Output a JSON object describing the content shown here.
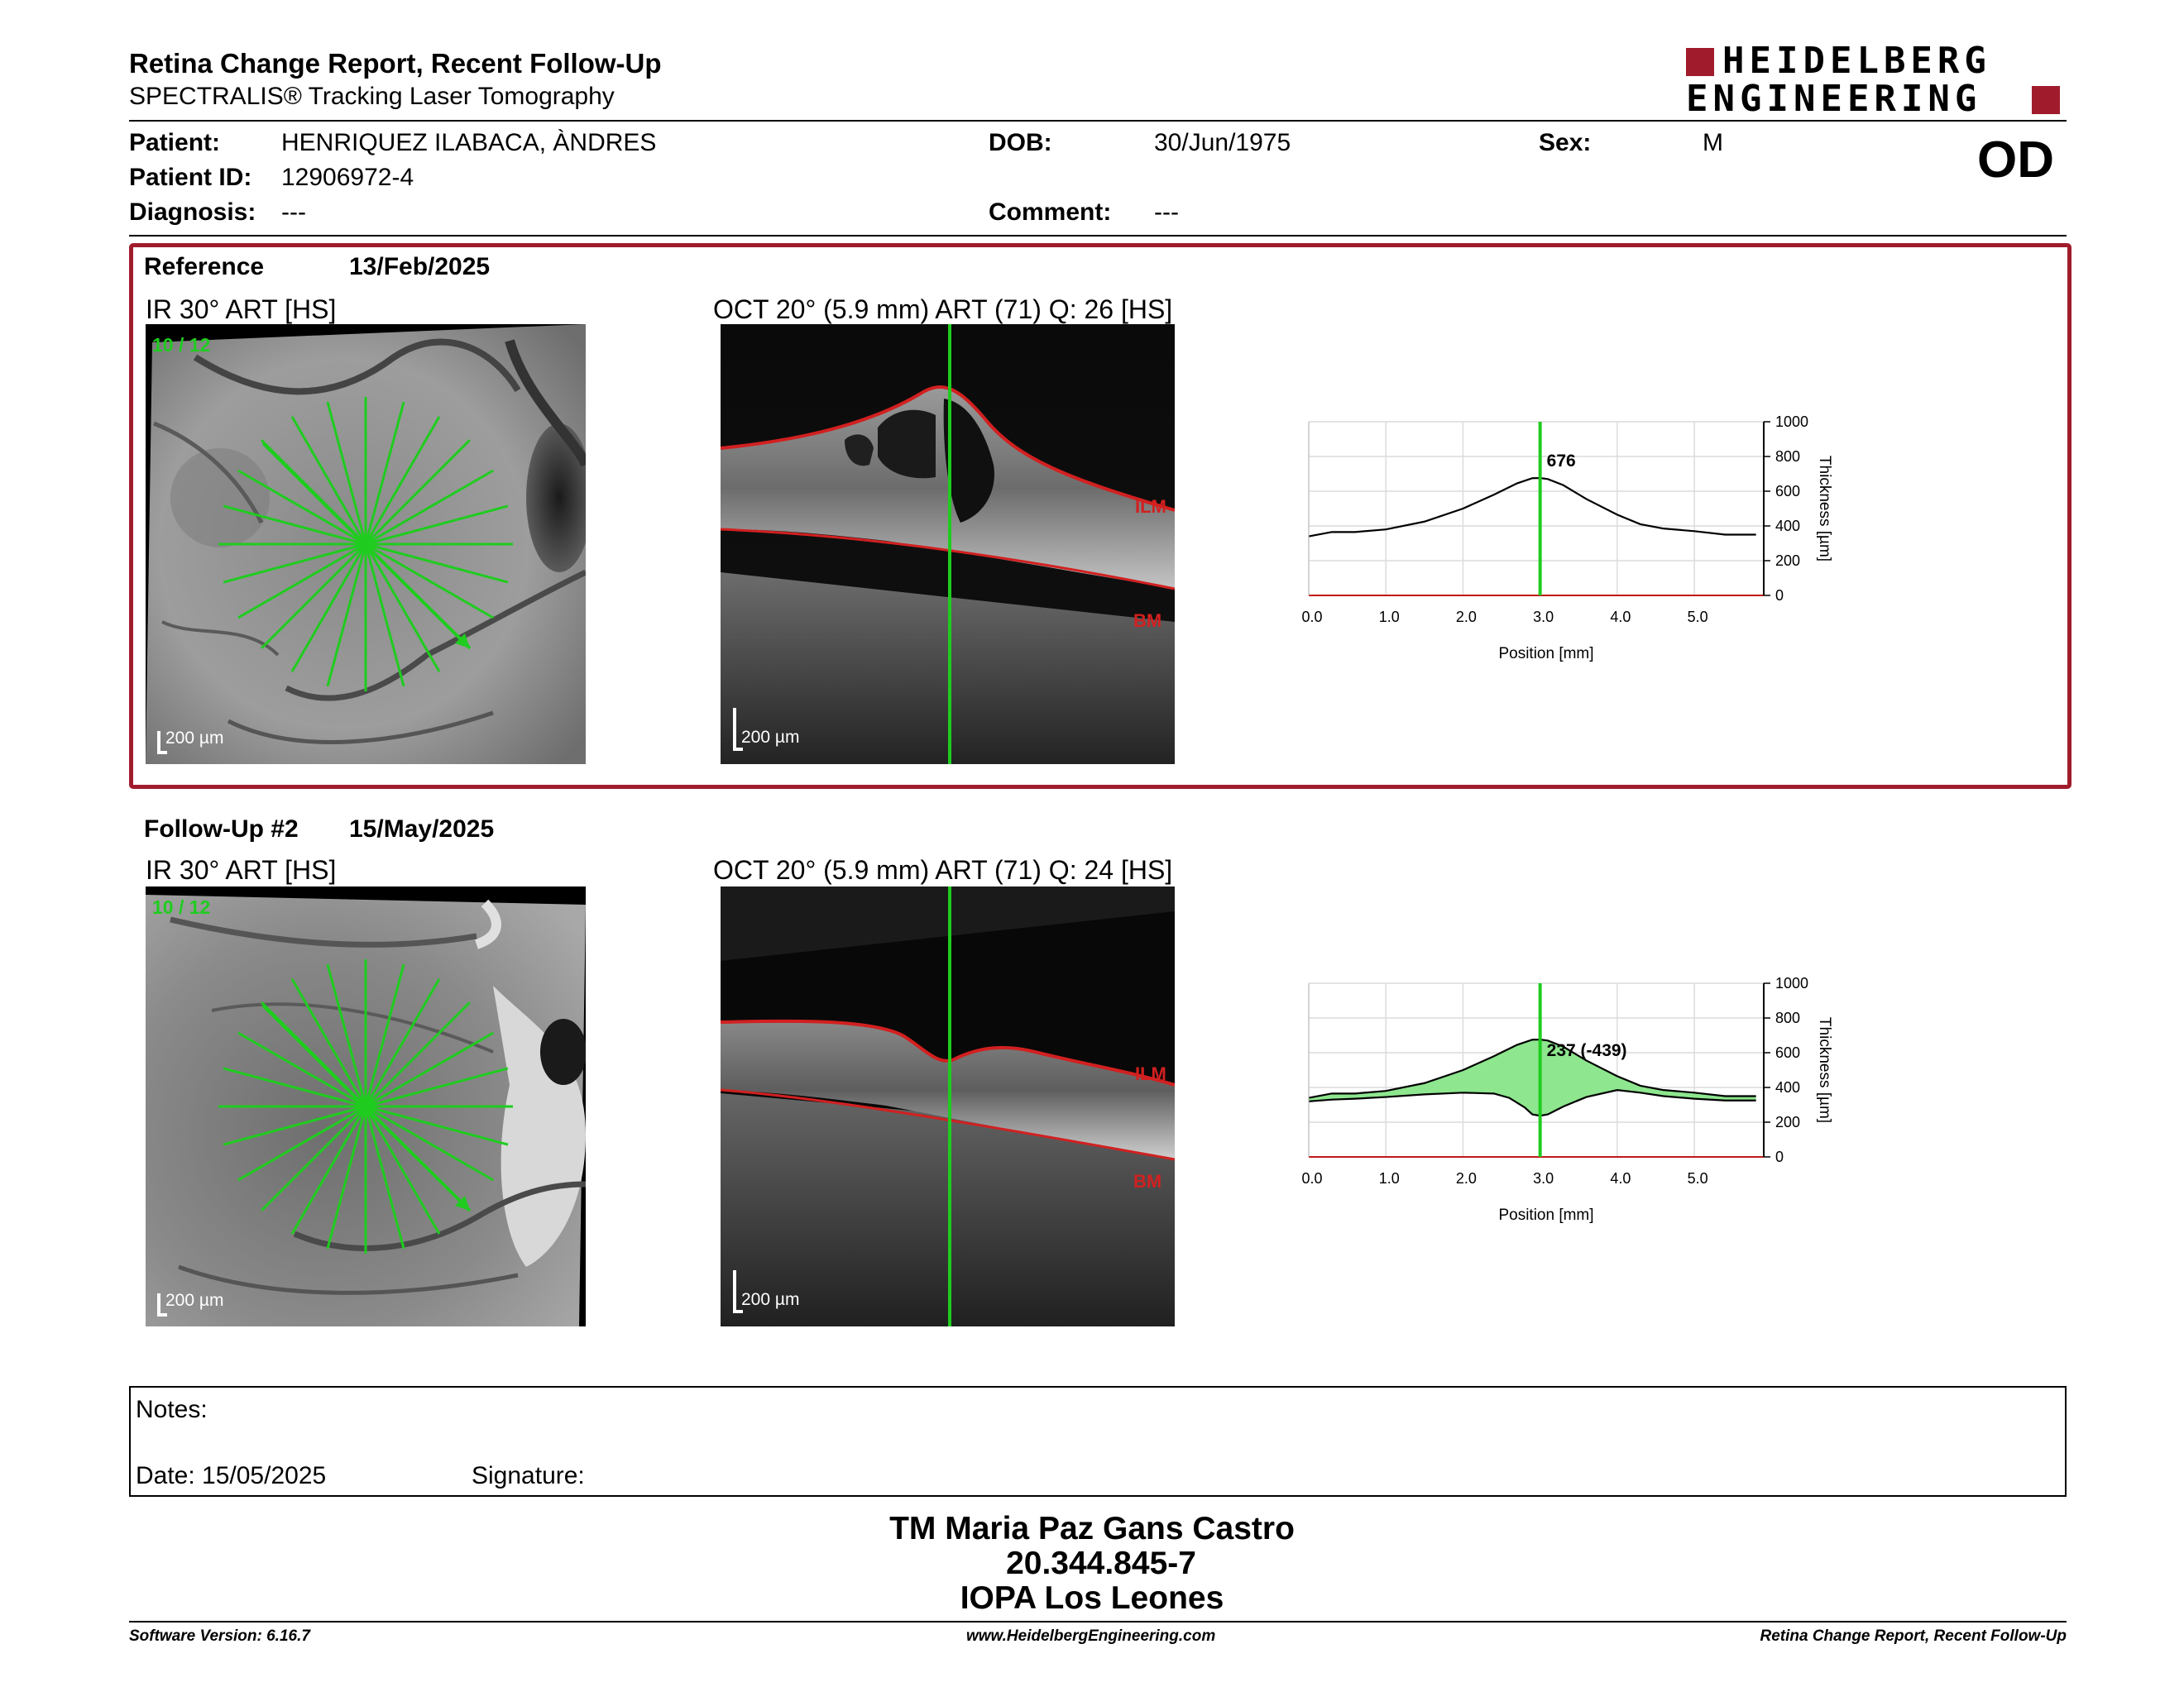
{
  "header": {
    "title": "Retina Change Report, Recent Follow-Up",
    "subtitle": "SPECTRALIS® Tracking Laser Tomography",
    "logo_line1": "HEIDELBERG",
    "logo_line2": "ENGINEERING",
    "eye": "OD"
  },
  "patient": {
    "patient_label": "Patient:",
    "patient_value": "HENRIQUEZ ILABACA, ÀNDRES",
    "id_label": "Patient ID:",
    "id_value": "12906972-4",
    "diagnosis_label": "Diagnosis:",
    "diagnosis_value": "---",
    "dob_label": "DOB:",
    "dob_value": "30/Jun/1975",
    "comment_label": "Comment:",
    "comment_value": "---",
    "sex_label": "Sex:",
    "sex_value": "M"
  },
  "reference": {
    "label": "Reference",
    "date": "13/Feb/2025",
    "ir_title": "IR 30° ART [HS]",
    "ir_counter": "10 / 12",
    "ir_scale": "200 µm",
    "oct_title": "OCT 20° (5.9 mm) ART (71) Q: 26 [HS]",
    "oct_scale": "200 µm",
    "ilm": "ILM",
    "bm": "BM",
    "marker_value": "676"
  },
  "followup": {
    "label": "Follow-Up #2",
    "date": "15/May/2025",
    "ir_title": "IR 30° ART [HS]",
    "ir_counter": "10 / 12",
    "ir_scale": "200 µm",
    "oct_title": "OCT 20° (5.9 mm) ART (71) Q: 24 [HS]",
    "oct_scale": "200 µm",
    "ilm": "ILM",
    "bm": "BM",
    "marker_value": "237 (-439)"
  },
  "chart_data": [
    {
      "type": "line",
      "xlabel": "Position [mm]",
      "ylabel": "Thickness [µm]",
      "xlim": [
        0,
        5.9
      ],
      "ylim": [
        0,
        1000
      ],
      "x_ticks": [
        "0.0",
        "1.0",
        "2.0",
        "3.0",
        "4.0",
        "5.0"
      ],
      "y_ticks": [
        "0",
        "200",
        "400",
        "600",
        "800",
        "1000"
      ],
      "grid": true,
      "marker_x": 3.0,
      "series": [
        {
          "x": [
            0,
            0.3,
            0.6,
            1.0,
            1.5,
            2.0,
            2.4,
            2.7,
            2.9,
            3.0,
            3.1,
            3.3,
            3.6,
            4.0,
            4.3,
            4.6,
            5.0,
            5.4,
            5.8
          ],
          "values": [
            340,
            365,
            365,
            380,
            425,
            500,
            580,
            645,
            675,
            676,
            670,
            635,
            555,
            465,
            410,
            385,
            370,
            350,
            350
          ]
        }
      ]
    },
    {
      "type": "area",
      "xlabel": "Position [mm]",
      "ylabel": "Thickness [µm]",
      "xlim": [
        0,
        5.9
      ],
      "ylim": [
        0,
        1000
      ],
      "x_ticks": [
        "0.0",
        "1.0",
        "2.0",
        "3.0",
        "4.0",
        "5.0"
      ],
      "y_ticks": [
        "0",
        "200",
        "400",
        "600",
        "800",
        "1000"
      ],
      "grid": true,
      "marker_x": 3.0,
      "series": [
        {
          "x": [
            0,
            0.3,
            0.6,
            1.0,
            1.5,
            2.0,
            2.4,
            2.7,
            2.9,
            3.0,
            3.1,
            3.3,
            3.6,
            4.0,
            4.3,
            4.6,
            5.0,
            5.4,
            5.8
          ],
          "values": [
            340,
            365,
            365,
            380,
            425,
            500,
            580,
            645,
            675,
            676,
            670,
            635,
            555,
            465,
            410,
            385,
            370,
            350,
            350
          ]
        },
        {
          "x": [
            0,
            0.3,
            0.6,
            1.0,
            1.5,
            2.0,
            2.4,
            2.6,
            2.8,
            2.9,
            3.0,
            3.1,
            3.3,
            3.6,
            4.0,
            4.3,
            4.6,
            5.0,
            5.4,
            5.8
          ],
          "values": [
            320,
            330,
            335,
            345,
            360,
            370,
            365,
            340,
            285,
            245,
            237,
            245,
            290,
            345,
            385,
            370,
            350,
            335,
            325,
            325
          ]
        }
      ]
    }
  ],
  "notes": {
    "label": "Notes:",
    "date_label": "Date: 15/05/2025",
    "signature_label": "Signature:"
  },
  "stamp": {
    "line1": "TM Maria Paz Gans Castro",
    "line2": "20.344.845-7",
    "line3": "IOPA Los Leones"
  },
  "footer": {
    "left": "Software Version: 6.16.7",
    "center": "www.HeidelbergEngineering.com",
    "right": "Retina Change Report, Recent Follow-Up"
  },
  "colors": {
    "accent_red": "#a01c2c",
    "scan_green": "#1fcc1f",
    "fill_green": "#8ee68e",
    "boundary_red": "#d22020"
  }
}
